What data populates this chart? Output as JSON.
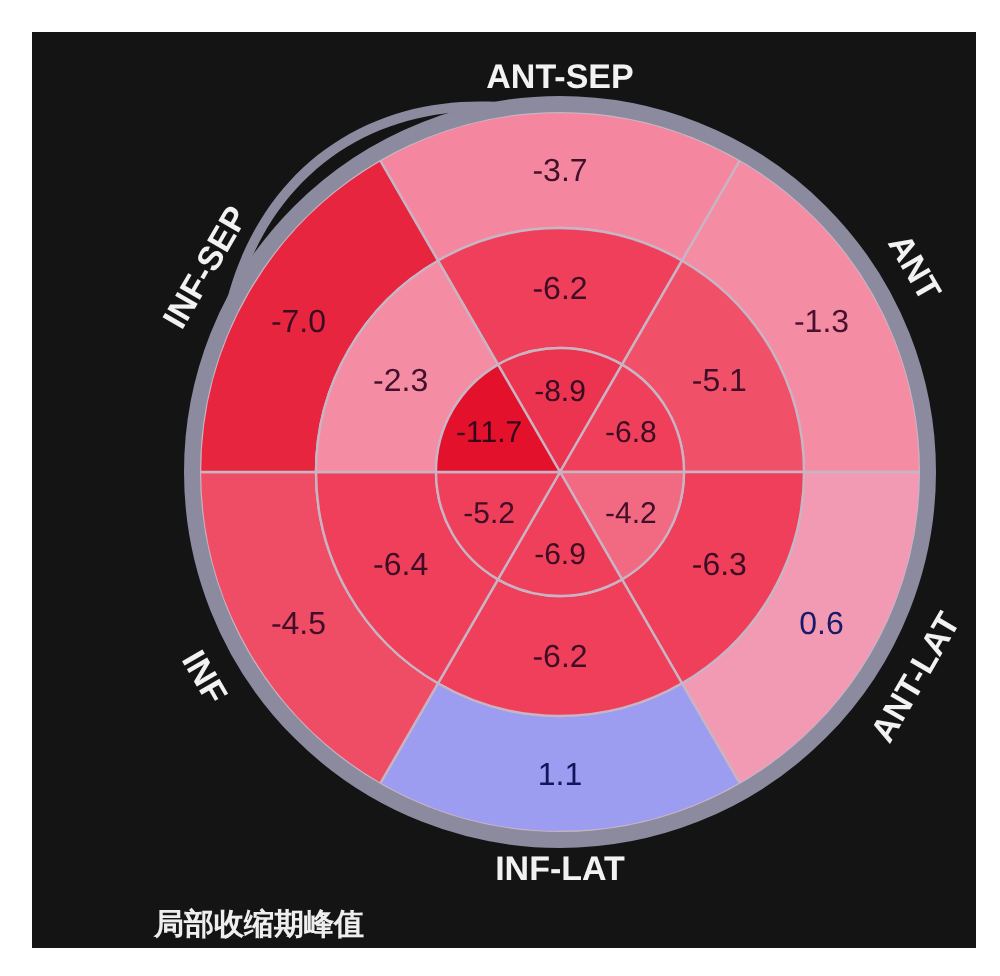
{
  "chart_data": {
    "type": "other",
    "title": "局部收缩期峰值",
    "categories": [
      "ANT-SEP",
      "ANT",
      "ANT-LAT",
      "INF-LAT",
      "INF",
      "INF-SEP"
    ],
    "series": [
      {
        "values": [
          -3.7,
          -1.3,
          0.6,
          1.1,
          -4.5,
          -7.0
        ],
        "value_labels": [
          "-3.7",
          "-1.3",
          "0.6",
          "1.1",
          "-4.5",
          "-7.0"
        ],
        "colors": [
          "#f4879f",
          "#f48ca4",
          "#f29ab4",
          "#9c9cf0",
          "#ef4d66",
          "#e8253f"
        ]
      },
      {
        "values": [
          -6.2,
          -5.1,
          -6.3,
          -6.2,
          -6.4,
          -2.3
        ],
        "value_labels": [
          "-6.2",
          "-5.1",
          "-6.3",
          "-6.2",
          "-6.4",
          "-2.3"
        ],
        "colors": [
          "#ef3f5a",
          "#f05068",
          "#ef3f5a",
          "#ef3f5a",
          "#ef3f5a",
          "#f48ca4"
        ]
      },
      {
        "values": [
          -8.9,
          -6.8,
          -4.2,
          -6.9,
          -5.2,
          -11.7
        ],
        "value_labels": [
          "-8.9",
          "-6.8",
          "-4.2",
          "-6.9",
          "-5.2",
          "-11.7"
        ],
        "colors": [
          "#ec3350",
          "#ef3f5a",
          "#f26a82",
          "#ef3f5a",
          "#ef3f5a",
          "#e3112c"
        ]
      }
    ]
  }
}
